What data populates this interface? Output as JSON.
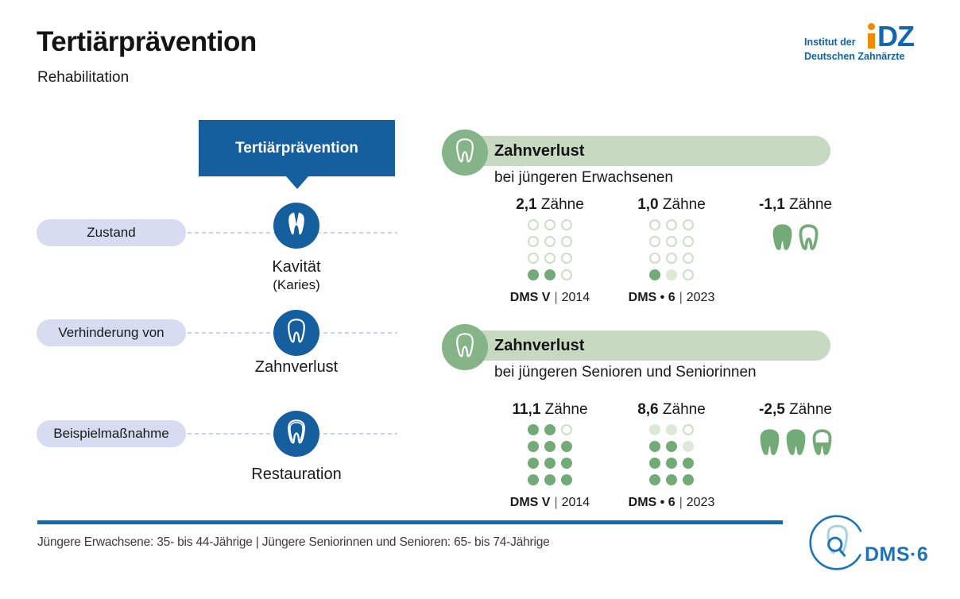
{
  "header": {
    "title": "Tertiärprävention",
    "subtitle": "Rehabilitation"
  },
  "idz_logo": {
    "line1": "Institut der",
    "line2": "Deutschen Zahnärzte",
    "mark": "DZ"
  },
  "flow": {
    "box_label": "Tertiärprävention",
    "rows": [
      {
        "pill": "Zustand",
        "icon": "tooth-cavity-icon",
        "label": "Kavität",
        "sublabel": "(Karies)"
      },
      {
        "pill": "Verhinderung von",
        "icon": "tooth-outline-icon",
        "label": "Zahnverlust",
        "sublabel": ""
      },
      {
        "pill": "Beispielmaßnahme",
        "icon": "tooth-restoration-icon",
        "label": "Restauration",
        "sublabel": ""
      }
    ]
  },
  "sections": [
    {
      "title": "Zahnverlust",
      "subtitle": "bei jüngeren Erwachsenen",
      "stats": [
        {
          "value": "2,1",
          "unit": "Zähne",
          "source": "DMS V",
          "sep": "|",
          "year": "2014",
          "dots": [
            "o",
            "o",
            "o",
            "o",
            "o",
            "o",
            "o",
            "o",
            "o",
            "f",
            "f",
            "o"
          ]
        },
        {
          "value": "1,0",
          "unit": "Zähne",
          "source": "DMS • 6",
          "sep": "|",
          "year": "2023",
          "dots": [
            "o",
            "o",
            "o",
            "o",
            "o",
            "o",
            "o",
            "o",
            "o",
            "f",
            "p",
            "o"
          ]
        }
      ],
      "delta": {
        "value": "-1,1",
        "unit": "Zähne",
        "teeth": [
          1,
          0.1
        ]
      }
    },
    {
      "title": "Zahnverlust",
      "subtitle": "bei jüngeren Senioren und Seniorinnen",
      "stats": [
        {
          "value": "11,1",
          "unit": "Zähne",
          "source": "DMS V",
          "sep": "|",
          "year": "2014",
          "dots": [
            "f",
            "f",
            "o",
            "f",
            "f",
            "f",
            "f",
            "f",
            "f",
            "f",
            "f",
            "f"
          ]
        },
        {
          "value": "8,6",
          "unit": "Zähne",
          "source": "DMS • 6",
          "sep": "|",
          "year": "2023",
          "dots": [
            "p",
            "p",
            "o",
            "f",
            "f",
            "p",
            "f",
            "f",
            "f",
            "f",
            "f",
            "f"
          ]
        }
      ],
      "delta": {
        "value": "-2,5",
        "unit": "Zähne",
        "teeth": [
          1,
          1,
          0.5
        ]
      }
    }
  ],
  "footer": {
    "note": "Jüngere Erwachsene: 35- bis 44-Jährige | Jüngere Seniorinnen und Senioren: 65- bis 74-Jährige",
    "dms_logo": "DMS·6"
  },
  "colors": {
    "primary_blue": "#155f9f",
    "footer_line_blue": "#0c6db7",
    "idz_blue": "#0e63a8",
    "idz_orange": "#f08a00",
    "dms_blue": "#1c73b9",
    "dms_light_blue": "#a5d2e0",
    "pill_bg": "#d8dcf0",
    "green_circle": "#85b489",
    "green_bar": "#c7d9c1",
    "dot_solid": "#73ab78",
    "dot_pale": "#dce9d7",
    "dot_outline": "#cbdfc6"
  },
  "chart_data": [
    {
      "type": "bar",
      "style": "dot-matrix-pictograph",
      "title": "Zahnverlust bei jüngeren Erwachsenen",
      "categories": [
        "DMS V | 2014",
        "DMS • 6 | 2023"
      ],
      "values": [
        2.1,
        1.0
      ],
      "delta": -1.1,
      "unit": "Zähne"
    },
    {
      "type": "bar",
      "style": "dot-matrix-pictograph",
      "title": "Zahnverlust bei jüngeren Senioren und Seniorinnen",
      "categories": [
        "DMS V | 2014",
        "DMS • 6 | 2023"
      ],
      "values": [
        11.1,
        8.6
      ],
      "delta": -2.5,
      "unit": "Zähne"
    }
  ]
}
